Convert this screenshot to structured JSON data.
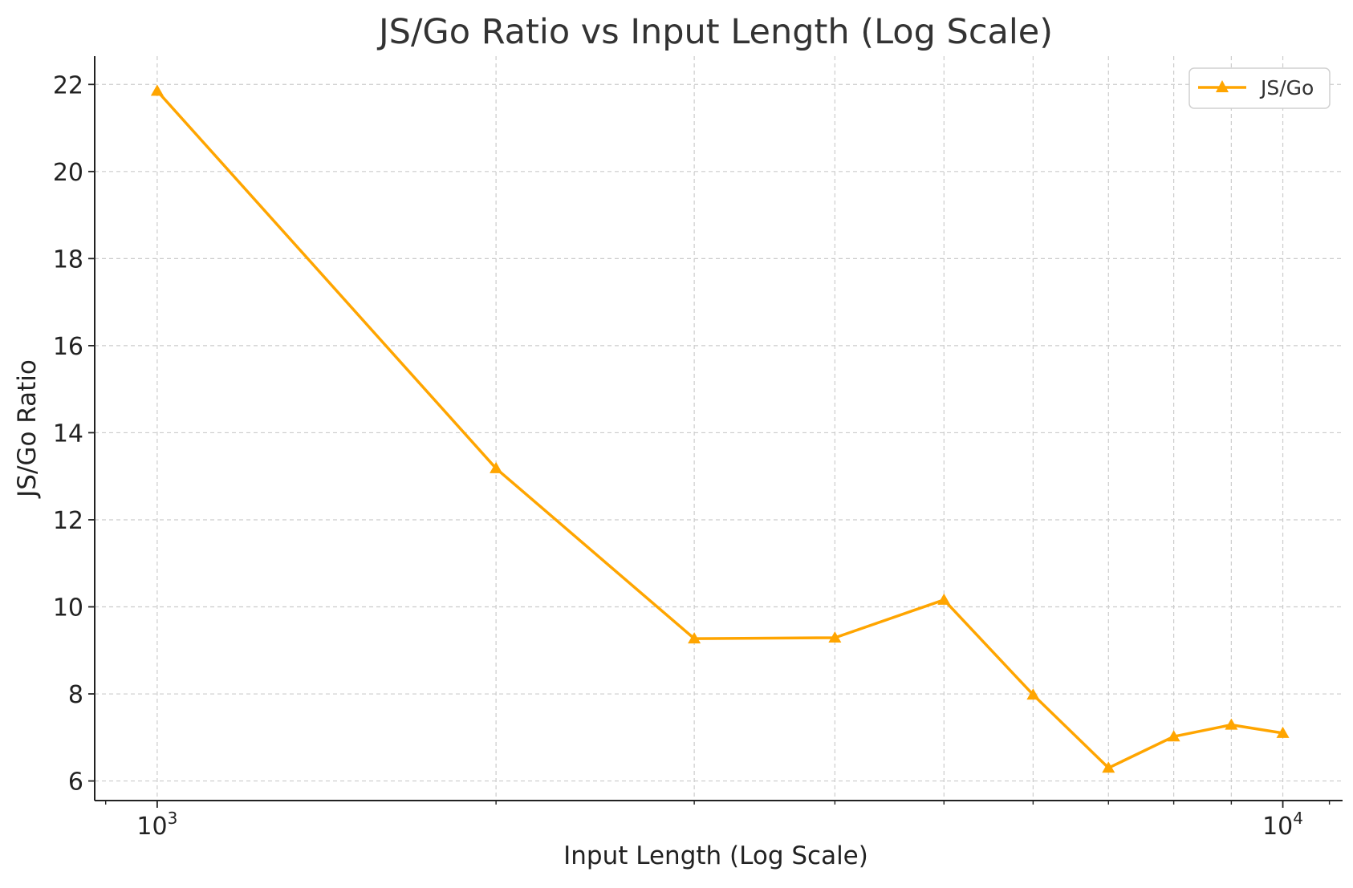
{
  "chart_data": {
    "type": "line",
    "title": "JS/Go Ratio vs Input Length (Log Scale)",
    "xlabel": "Input Length (Log Scale)",
    "ylabel": "JS/Go Ratio",
    "x_scale": "log",
    "xlim": [
      880,
      11300
    ],
    "ylim": [
      5.55,
      22.65
    ],
    "x_ticks": [
      {
        "value": 1000,
        "base": "10",
        "exp": "3"
      },
      {
        "value": 10000,
        "base": "10",
        "exp": "4"
      }
    ],
    "y_ticks": [
      6,
      8,
      10,
      12,
      14,
      16,
      18,
      20,
      22
    ],
    "y_tick_labels": [
      "6",
      "8",
      "10",
      "12",
      "14",
      "16",
      "18",
      "20",
      "22"
    ],
    "x_grid": [
      1000,
      2000,
      3000,
      4000,
      5000,
      6000,
      7000,
      8000,
      9000,
      10000
    ],
    "grid": true,
    "legend": {
      "position": "top-right",
      "entries": [
        "JS/Go"
      ]
    },
    "series": [
      {
        "name": "JS/Go",
        "color": "#FFA500",
        "marker": "triangle",
        "x": [
          1000,
          2000,
          3000,
          4000,
          5000,
          6000,
          7000,
          8000,
          9000,
          10000
        ],
        "y": [
          21.85,
          13.18,
          9.27,
          9.29,
          10.16,
          7.98,
          6.3,
          7.02,
          7.29,
          7.1
        ]
      }
    ]
  }
}
